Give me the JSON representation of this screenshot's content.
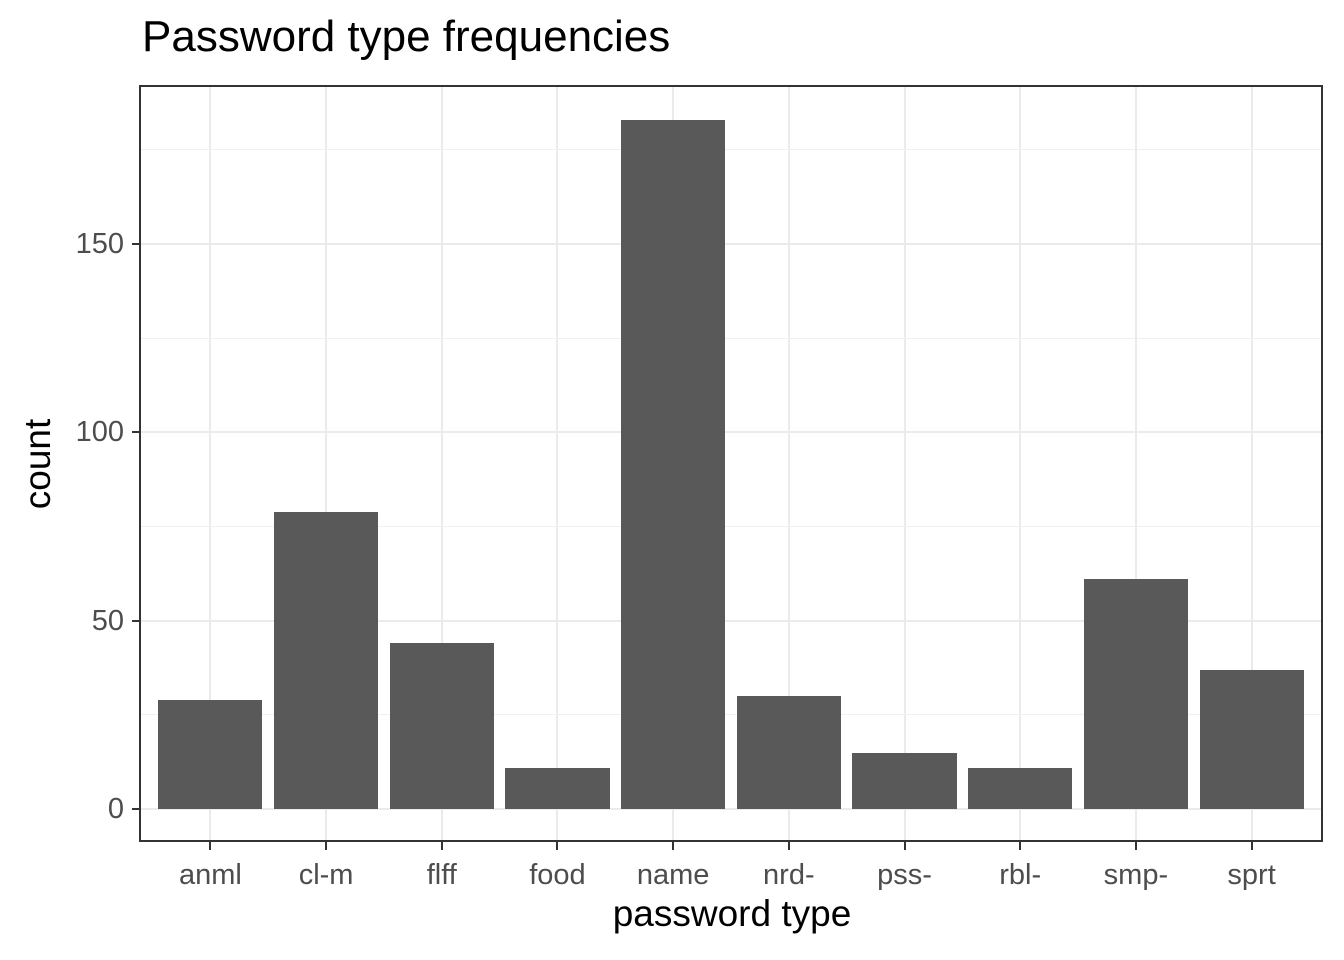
{
  "title": "Password type frequencies",
  "chart_data": {
    "type": "bar",
    "title": "Password type frequencies",
    "xlabel": "password type",
    "ylabel": "count",
    "categories": [
      "anml",
      "cl-m",
      "flff",
      "food",
      "name",
      "nrd-",
      "pss-",
      "rbl-",
      "smp-",
      "sprt"
    ],
    "values": [
      29,
      79,
      44,
      11,
      183,
      30,
      15,
      11,
      61,
      37
    ],
    "ylim": [
      -8.2,
      191.7
    ],
    "yticks": [
      0,
      50,
      100,
      150
    ],
    "yticks_minor": [
      25,
      75,
      125,
      175
    ],
    "grid": "horizontal major+minor, vertical major at categories",
    "legend": "none",
    "band_expand": 0.6,
    "bar_rel_width": 0.9,
    "colors": {
      "bar_fill": "#595959",
      "panel_border": "#333333",
      "panel_background": "#ffffff",
      "grid_major": "#ebebeb",
      "grid_minor": "#f0f0f0",
      "tick_mark": "#333333",
      "tick_label": "#4d4d4d",
      "axis_title": "#000000",
      "plot_title": "#000000",
      "figure_background": "#ffffff"
    }
  }
}
